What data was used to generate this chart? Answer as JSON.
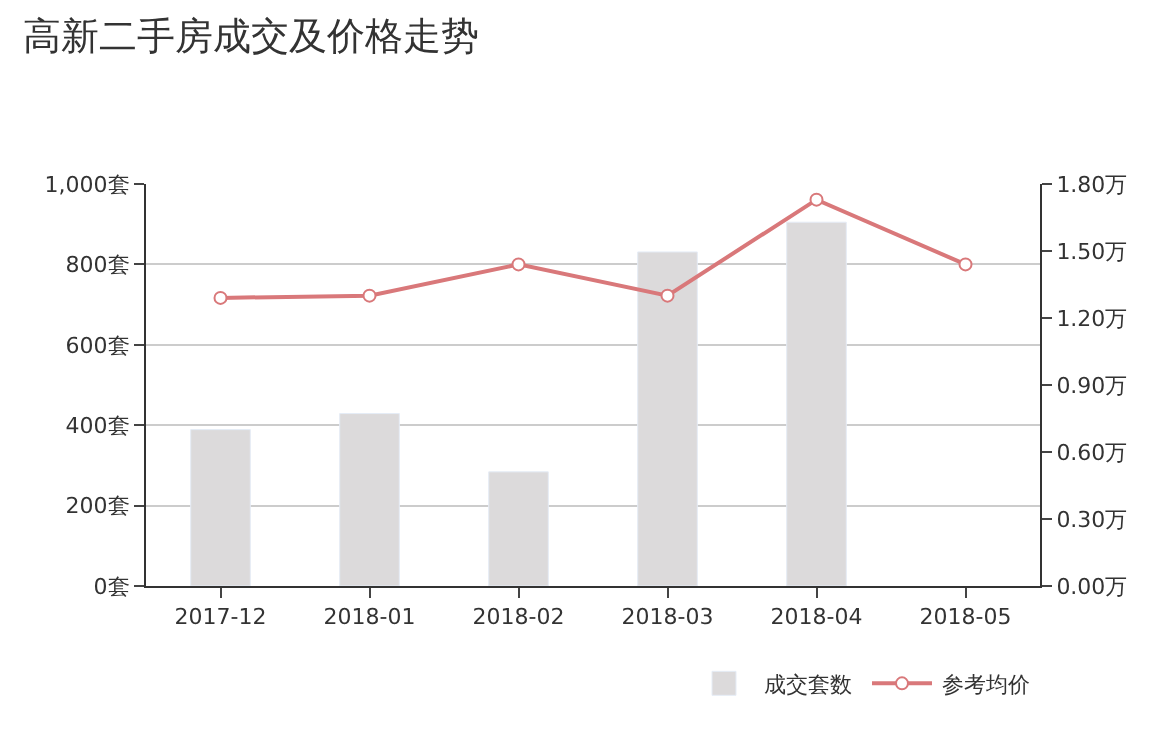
{
  "chart_data": {
    "type": "bar",
    "title": "高新二手房成交及价格走势",
    "categories": [
      "2017-12",
      "2018-01",
      "2018-02",
      "2018-03",
      "2018-04",
      "2018-05"
    ],
    "series": [
      {
        "name": "成交套数",
        "color": "#dcdadb",
        "values": [
          389,
          429,
          284,
          831,
          905,
          null
        ]
      },
      {
        "name": "参考均价",
        "type": "line",
        "axis": "y2",
        "color": "#d9787a",
        "marker": "circle",
        "values": [
          1.29,
          1.3,
          1.44,
          1.3,
          1.73,
          1.44
        ]
      }
    ],
    "ylim": [
      0,
      1000
    ],
    "yticks": [
      {
        "value": 0,
        "label": "0套"
      },
      {
        "value": 200,
        "label": "200套"
      },
      {
        "value": 400,
        "label": "400套"
      },
      {
        "value": 600,
        "label": "600套"
      },
      {
        "value": 800,
        "label": "800套"
      },
      {
        "value": 1000,
        "label": "1,000套"
      }
    ],
    "y2lim": [
      0,
      1.8
    ],
    "y2ticks": [
      {
        "value": 0,
        "label": "0.00万"
      },
      {
        "value": 0.3,
        "label": "0.30万"
      },
      {
        "value": 0.6,
        "label": "0.60万"
      },
      {
        "value": 0.9,
        "label": "0.90万"
      },
      {
        "value": 1.2,
        "label": "1.20万"
      },
      {
        "value": 1.5,
        "label": "1.50万"
      },
      {
        "value": 1.8,
        "label": "1.80万"
      }
    ],
    "grid": "y",
    "legend": "bottom right"
  }
}
